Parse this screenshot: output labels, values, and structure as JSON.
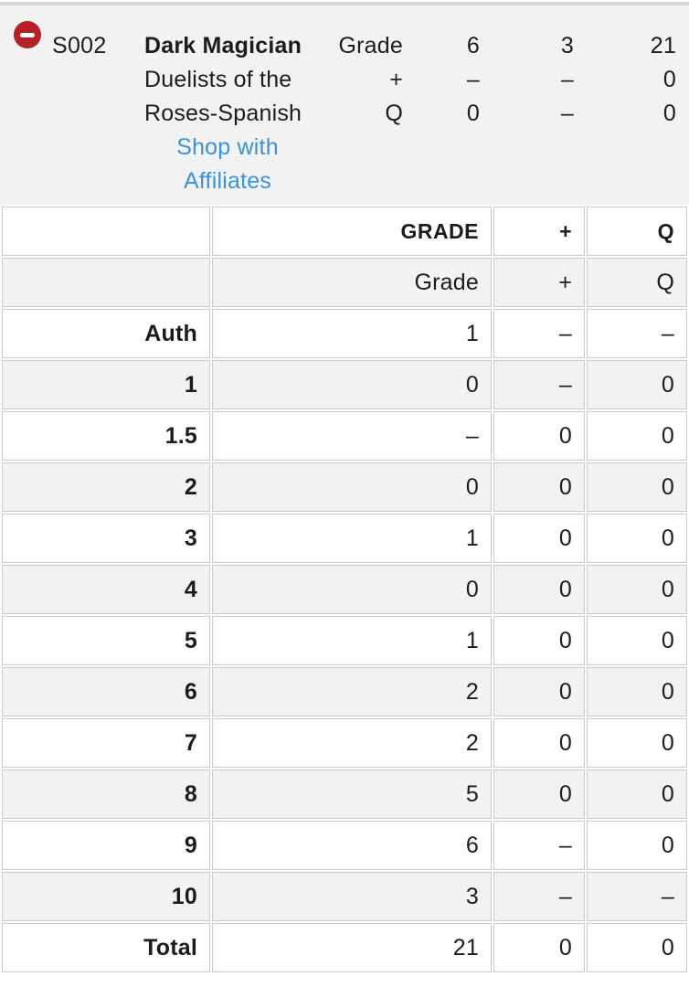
{
  "header": {
    "item_code": "S002",
    "title": "Dark Magician",
    "set_name_lines": [
      "Duelists of the",
      "Roses-Spanish"
    ],
    "affiliate_link_lines": [
      "Shop with",
      "Affiliates"
    ],
    "stats_rows": [
      {
        "label": "Grade",
        "values": [
          "6",
          "3",
          "21"
        ]
      },
      {
        "label": "+",
        "values": [
          "–",
          "–",
          "0"
        ]
      },
      {
        "label": "Q",
        "values": [
          "0",
          "–",
          "0"
        ]
      }
    ]
  },
  "table": {
    "column_headers": [
      "",
      "GRADE",
      "+",
      "Q"
    ],
    "subheaders": [
      "",
      "Grade",
      "+",
      "Q"
    ],
    "rows": [
      {
        "label": "Auth",
        "grade": "1",
        "plus": "–",
        "q": "–"
      },
      {
        "label": "1",
        "grade": "0",
        "plus": "–",
        "q": "0"
      },
      {
        "label": "1.5",
        "grade": "–",
        "plus": "0",
        "q": "0"
      },
      {
        "label": "2",
        "grade": "0",
        "plus": "0",
        "q": "0"
      },
      {
        "label": "3",
        "grade": "1",
        "plus": "0",
        "q": "0"
      },
      {
        "label": "4",
        "grade": "0",
        "plus": "0",
        "q": "0"
      },
      {
        "label": "5",
        "grade": "1",
        "plus": "0",
        "q": "0"
      },
      {
        "label": "6",
        "grade": "2",
        "plus": "0",
        "q": "0"
      },
      {
        "label": "7",
        "grade": "2",
        "plus": "0",
        "q": "0"
      },
      {
        "label": "8",
        "grade": "5",
        "plus": "0",
        "q": "0"
      },
      {
        "label": "9",
        "grade": "6",
        "plus": "–",
        "q": "0"
      },
      {
        "label": "10",
        "grade": "3",
        "plus": "–",
        "q": "–"
      },
      {
        "label": "Total",
        "grade": "21",
        "plus": "0",
        "q": "0"
      }
    ]
  },
  "icons": {
    "remove": "minus-circle-icon"
  },
  "colors": {
    "remove_button_red": "#b42126",
    "link_blue": "#3b93d6",
    "header_background": "#f2f2f2",
    "row_alt_background": "#f2f2f2",
    "table_border": "#cbcbcb",
    "text": "#1c1c1e",
    "top_divider": "#d6d6d6"
  }
}
